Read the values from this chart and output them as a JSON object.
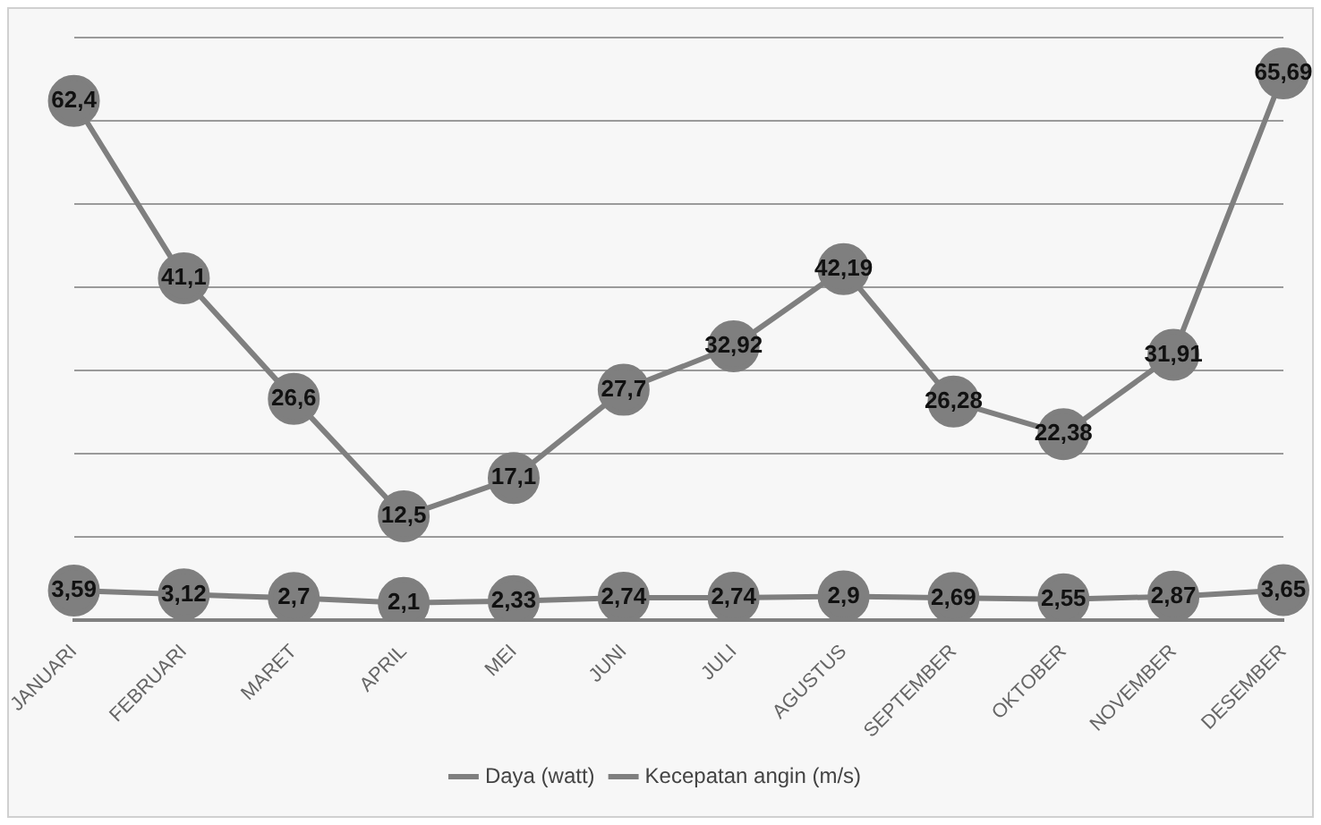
{
  "chart_data": {
    "type": "line",
    "categories": [
      "JANUARI",
      "FEBRUARI",
      "MARET",
      "APRIL",
      "MEI",
      "JUNI",
      "JULI",
      "AGUSTUS",
      "SEPTEMBER",
      "OKTOBER",
      "NOVEMBER",
      "DESEMBER"
    ],
    "series": [
      {
        "name": "Daya (watt)",
        "color": "#7f7f7f",
        "values": [
          62.4,
          41.1,
          26.6,
          12.5,
          17.1,
          27.7,
          32.92,
          42.19,
          26.28,
          22.38,
          31.91,
          65.69
        ],
        "value_labels": [
          "62,4",
          "41,1",
          "26,6",
          "12,5",
          "17,1",
          "27,7",
          "32,92",
          "42,19",
          "26,28",
          "22,38",
          "31,91",
          "65,69"
        ]
      },
      {
        "name": "Kecepatan angin (m/s)",
        "color": "#7f7f7f",
        "values": [
          3.59,
          3.12,
          2.7,
          2.1,
          2.33,
          2.74,
          2.74,
          2.9,
          2.69,
          2.55,
          2.87,
          3.65
        ],
        "value_labels": [
          "3,59",
          "3,12",
          "2,7",
          "2,1",
          "2,33",
          "2,74",
          "2,74",
          "2,9",
          "2,69",
          "2,55",
          "2,87",
          "3,65"
        ]
      }
    ],
    "ylim": [
      0,
      70
    ],
    "yticks": [
      0,
      10,
      20,
      30,
      40,
      50,
      60,
      70
    ],
    "grid": "y",
    "tick_labels": "x",
    "marker": "circle",
    "legend": "bottom"
  }
}
